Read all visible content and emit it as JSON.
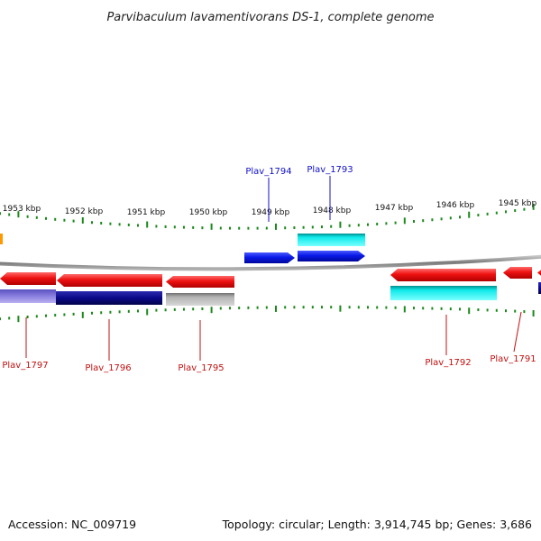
{
  "title": "Parvibaculum lavamentivorans DS-1, complete genome",
  "footer": {
    "accession": "Accession: NC_009719",
    "summary": "Topology: circular; Length: 3,914,745 bp; Genes: 3,686"
  },
  "colors": {
    "tick": "#1a8a1a",
    "backbone": "#8a8a8a",
    "label_top": "#1010c8",
    "label_bottom": "#c01010",
    "red": "#ee1111",
    "blue": "#0a1ae8",
    "cyan": "#10eaea",
    "navy": "#0a0a88",
    "lavender": "#7a70d8",
    "gray": "#a8a8a8",
    "orange": "#ff9900"
  },
  "scale": {
    "ticks": [
      {
        "label": "1953 kbp"
      },
      {
        "label": "1952 kbp"
      },
      {
        "label": "1951 kbp"
      },
      {
        "label": "1950 kbp"
      },
      {
        "label": "1949 kbp"
      },
      {
        "label": "1948 kbp"
      },
      {
        "label": "1947 kbp"
      },
      {
        "label": "1946 kbp"
      },
      {
        "label": "1945 kbp"
      }
    ]
  },
  "genes": [
    {
      "label": "Plav_1797",
      "strand": "bottom"
    },
    {
      "label": "Plav_1796",
      "strand": "bottom"
    },
    {
      "label": "Plav_1795",
      "strand": "bottom"
    },
    {
      "label": "Plav_1794",
      "strand": "top"
    },
    {
      "label": "Plav_1793",
      "strand": "top"
    },
    {
      "label": "Plav_1792",
      "strand": "bottom"
    },
    {
      "label": "Plav_1791",
      "strand": "bottom"
    }
  ]
}
